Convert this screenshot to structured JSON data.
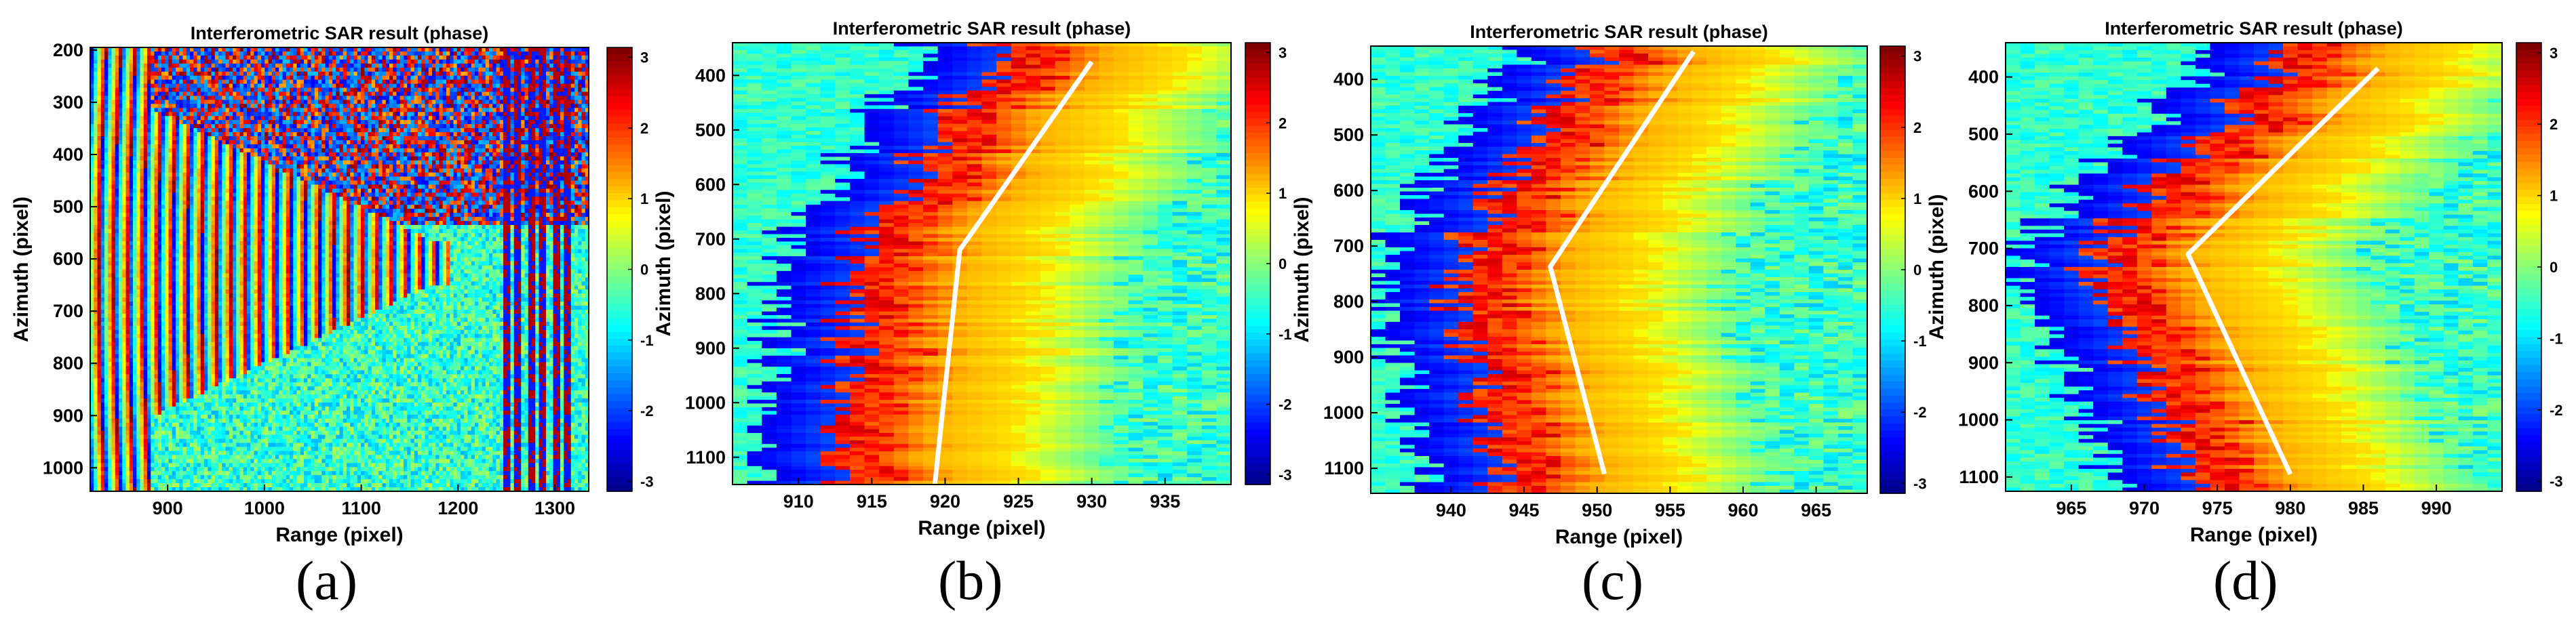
{
  "chart_data": [
    {
      "type": "heatmap",
      "title": "Interferometric SAR result (phase)",
      "xlabel": "Range (pixel)",
      "ylabel": "Azimuth (pixel)",
      "xlim": [
        820,
        1335
      ],
      "ylim": [
        1045,
        195
      ],
      "xticks": [
        900,
        1000,
        1100,
        1200,
        1300
      ],
      "yticks": [
        200,
        300,
        400,
        500,
        600,
        700,
        800,
        900,
        1000
      ],
      "colorbar": {
        "range": [
          -3.14,
          3.14
        ],
        "ticks": [
          3,
          2,
          1,
          0,
          -1,
          -2,
          -3
        ]
      },
      "pattern": "fringes",
      "overlay_line": [],
      "panel_label": "(a)"
    },
    {
      "type": "heatmap",
      "title": "Interferometric SAR result (phase)",
      "xlabel": "Range (pixel)",
      "ylabel": "Azimuth (pixel)",
      "xlim": [
        905.5,
        939.5
      ],
      "ylim": [
        1150,
        340
      ],
      "xticks": [
        910,
        915,
        920,
        925,
        930,
        935
      ],
      "yticks": [
        400,
        500,
        600,
        700,
        800,
        900,
        1000,
        1100
      ],
      "colorbar": {
        "range": [
          -3.14,
          3.14
        ],
        "ticks": [
          3,
          2,
          1,
          0,
          -1,
          -2,
          -3
        ]
      },
      "pattern": "front",
      "overlay_line": [
        [
          930,
          375
        ],
        [
          921,
          720
        ],
        [
          919.3,
          1150
        ]
      ],
      "panel_label": "(b)"
    },
    {
      "type": "heatmap",
      "title": "Interferometric SAR result (phase)",
      "xlabel": "Range (pixel)",
      "ylabel": "Azimuth (pixel)",
      "xlim": [
        934.5,
        968.5
      ],
      "ylim": [
        1145,
        340
      ],
      "xticks": [
        940,
        945,
        950,
        955,
        960,
        965
      ],
      "yticks": [
        400,
        500,
        600,
        700,
        800,
        900,
        1000,
        1100
      ],
      "colorbar": {
        "range": [
          -3.14,
          3.14
        ],
        "ticks": [
          3,
          2,
          1,
          0,
          -1,
          -2,
          -3
        ]
      },
      "pattern": "front",
      "overlay_line": [
        [
          956.6,
          350
        ],
        [
          946.8,
          737
        ],
        [
          950.5,
          1110
        ]
      ],
      "panel_label": "(c)"
    },
    {
      "type": "heatmap",
      "title": "Interferometric SAR result (phase)",
      "xlabel": "Range (pixel)",
      "ylabel": "Azimuth (pixel)",
      "xlim": [
        960.5,
        994.5
      ],
      "ylim": [
        1125,
        340
      ],
      "xticks": [
        965,
        970,
        975,
        980,
        985,
        990
      ],
      "yticks": [
        400,
        500,
        600,
        700,
        800,
        900,
        1000,
        1100
      ],
      "colorbar": {
        "range": [
          -3.14,
          3.14
        ],
        "ticks": [
          3,
          2,
          1,
          0,
          -1,
          -2,
          -3
        ]
      },
      "pattern": "front",
      "overlay_line": [
        [
          986,
          385
        ],
        [
          973,
          710
        ],
        [
          980,
          1095
        ]
      ],
      "panel_label": "(d)"
    }
  ]
}
